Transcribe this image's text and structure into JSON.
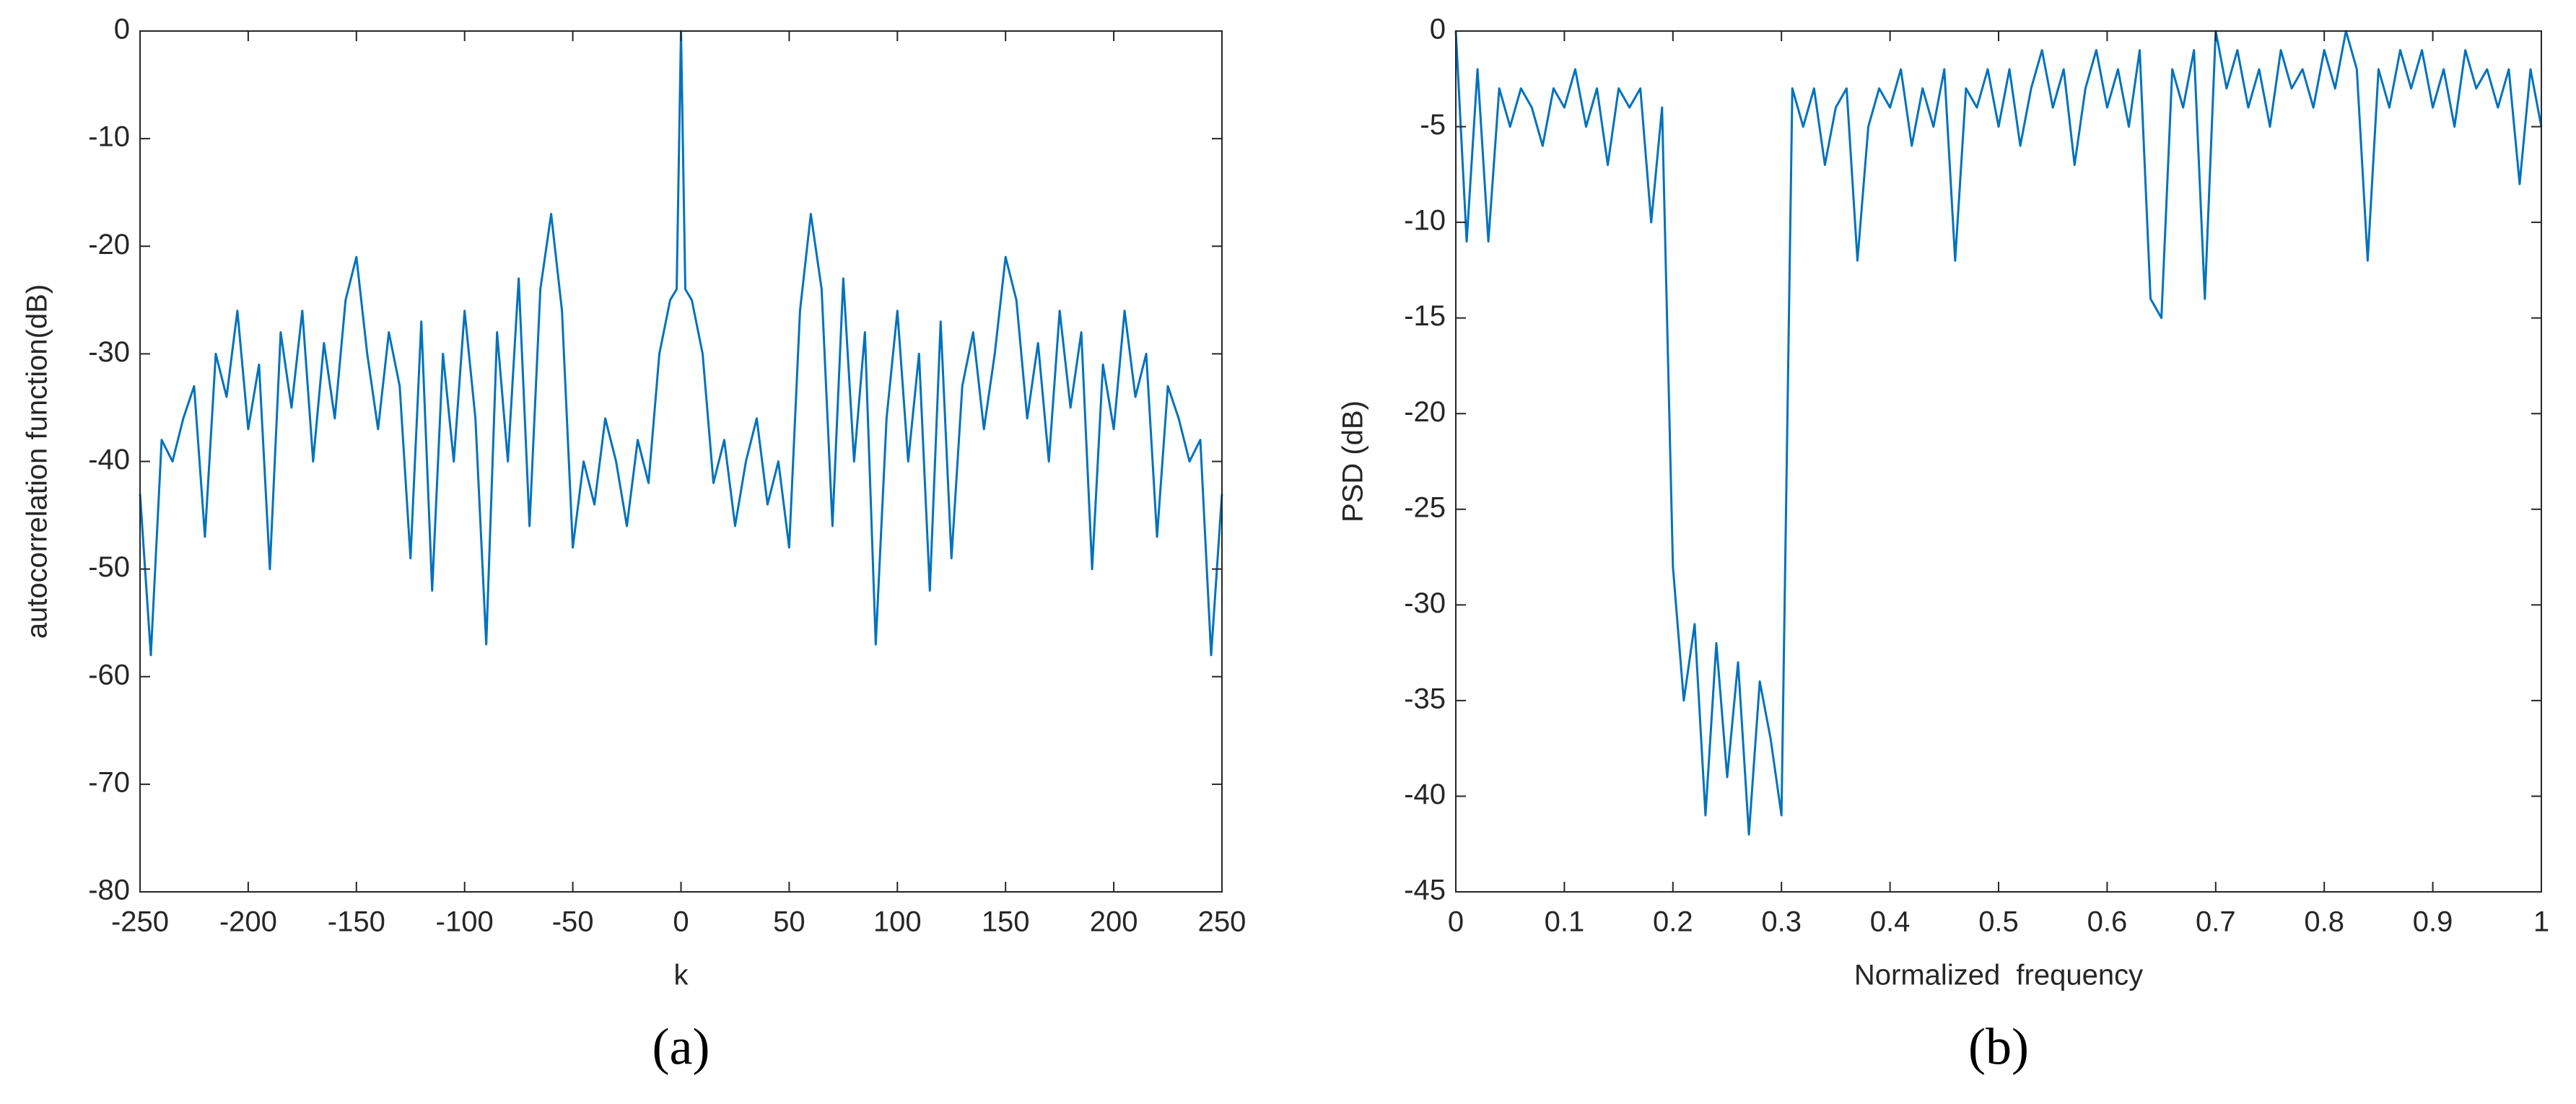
{
  "chart_data": [
    {
      "type": "line",
      "caption": "(a)",
      "xlabel": "k",
      "ylabel": "autocorrelation function(dB)",
      "xlim": [
        -250,
        250
      ],
      "xticks": [
        -250,
        -200,
        -150,
        -100,
        -50,
        0,
        50,
        100,
        150,
        200,
        250
      ],
      "ylim": [
        -80,
        0
      ],
      "yticks": [
        -80,
        -70,
        -60,
        -50,
        -40,
        -30,
        -20,
        -10,
        0
      ],
      "x": [
        -250,
        -245,
        -240,
        -235,
        -230,
        -225,
        -220,
        -215,
        -210,
        -205,
        -200,
        -195,
        -190,
        -185,
        -180,
        -175,
        -170,
        -165,
        -160,
        -155,
        -150,
        -145,
        -140,
        -135,
        -130,
        -125,
        -120,
        -115,
        -110,
        -105,
        -100,
        -95,
        -90,
        -85,
        -80,
        -75,
        -70,
        -65,
        -60,
        -55,
        -50,
        -45,
        -40,
        -35,
        -30,
        -25,
        -20,
        -15,
        -10,
        -5,
        -2,
        0,
        2,
        5,
        10,
        15,
        20,
        25,
        30,
        35,
        40,
        45,
        50,
        55,
        60,
        65,
        70,
        75,
        80,
        85,
        90,
        95,
        100,
        105,
        110,
        115,
        120,
        125,
        130,
        135,
        140,
        145,
        150,
        155,
        160,
        165,
        170,
        175,
        180,
        185,
        190,
        195,
        200,
        205,
        210,
        215,
        220,
        225,
        230,
        235,
        240,
        245,
        250
      ],
      "series": [
        {
          "color": "#0072bd",
          "values": [
            -43,
            -58,
            -38,
            -40,
            -36,
            -33,
            -47,
            -30,
            -34,
            -26,
            -37,
            -31,
            -50,
            -28,
            -35,
            -26,
            -40,
            -29,
            -36,
            -25,
            -21,
            -30,
            -37,
            -28,
            -33,
            -49,
            -27,
            -52,
            -30,
            -40,
            -26,
            -36,
            -57,
            -28,
            -40,
            -23,
            -46,
            -24,
            -17,
            -26,
            -48,
            -40,
            -44,
            -36,
            -40,
            -46,
            -38,
            -42,
            -30,
            -25,
            -24,
            0,
            -24,
            -25,
            -30,
            -42,
            -38,
            -46,
            -40,
            -36,
            -44,
            -40,
            -48,
            -26,
            -17,
            -24,
            -46,
            -23,
            -40,
            -28,
            -57,
            -36,
            -26,
            -40,
            -30,
            -52,
            -27,
            -49,
            -33,
            -28,
            -37,
            -30,
            -21,
            -25,
            -36,
            -29,
            -40,
            -26,
            -35,
            -28,
            -50,
            -31,
            -37,
            -26,
            -34,
            -30,
            -47,
            -33,
            -36,
            -40,
            -38,
            -58,
            -43
          ]
        }
      ]
    },
    {
      "type": "line",
      "caption": "(b)",
      "xlabel": "Normalized  frequency",
      "ylabel": "PSD (dB)",
      "xlim": [
        0,
        1
      ],
      "xticks": [
        0,
        0.1,
        0.2,
        0.3,
        0.4,
        0.5,
        0.6,
        0.7,
        0.8,
        0.9,
        1
      ],
      "ylim": [
        -45,
        0
      ],
      "yticks": [
        -45,
        -40,
        -35,
        -30,
        -25,
        -20,
        -15,
        -10,
        -5,
        0
      ],
      "x": [
        0,
        0.01,
        0.02,
        0.03,
        0.04,
        0.05,
        0.06,
        0.07,
        0.08,
        0.09,
        0.1,
        0.11,
        0.12,
        0.13,
        0.14,
        0.15,
        0.16,
        0.17,
        0.18,
        0.19,
        0.2,
        0.21,
        0.22,
        0.23,
        0.24,
        0.25,
        0.26,
        0.27,
        0.28,
        0.29,
        0.3,
        0.31,
        0.32,
        0.33,
        0.34,
        0.35,
        0.36,
        0.37,
        0.38,
        0.39,
        0.4,
        0.41,
        0.42,
        0.43,
        0.44,
        0.45,
        0.46,
        0.47,
        0.48,
        0.49,
        0.5,
        0.51,
        0.52,
        0.53,
        0.54,
        0.55,
        0.56,
        0.57,
        0.58,
        0.59,
        0.6,
        0.61,
        0.62,
        0.63,
        0.64,
        0.65,
        0.66,
        0.67,
        0.68,
        0.69,
        0.7,
        0.71,
        0.72,
        0.73,
        0.74,
        0.75,
        0.76,
        0.77,
        0.78,
        0.79,
        0.8,
        0.81,
        0.82,
        0.83,
        0.84,
        0.85,
        0.86,
        0.87,
        0.88,
        0.89,
        0.9,
        0.91,
        0.92,
        0.93,
        0.94,
        0.95,
        0.96,
        0.97,
        0.98,
        0.99,
        1
      ],
      "series": [
        {
          "color": "#0072bd",
          "values": [
            0,
            -11,
            -2,
            -11,
            -3,
            -5,
            -3,
            -4,
            -6,
            -3,
            -4,
            -2,
            -5,
            -3,
            -7,
            -3,
            -4,
            -3,
            -10,
            -4,
            -28,
            -35,
            -31,
            -41,
            -32,
            -39,
            -33,
            -42,
            -34,
            -37,
            -41,
            -3,
            -5,
            -3,
            -7,
            -4,
            -3,
            -12,
            -5,
            -3,
            -4,
            -2,
            -6,
            -3,
            -5,
            -2,
            -12,
            -3,
            -4,
            -2,
            -5,
            -2,
            -6,
            -3,
            -1,
            -4,
            -2,
            -7,
            -3,
            -1,
            -4,
            -2,
            -5,
            -1,
            -14,
            -15,
            -2,
            -4,
            -1,
            -14,
            0,
            -3,
            -1,
            -4,
            -2,
            -5,
            -1,
            -3,
            -2,
            -4,
            -1,
            -3,
            0,
            -2,
            -12,
            -2,
            -4,
            -1,
            -3,
            -1,
            -4,
            -2,
            -5,
            -1,
            -3,
            -2,
            -4,
            -2,
            -8,
            -2,
            -5
          ]
        }
      ]
    }
  ]
}
